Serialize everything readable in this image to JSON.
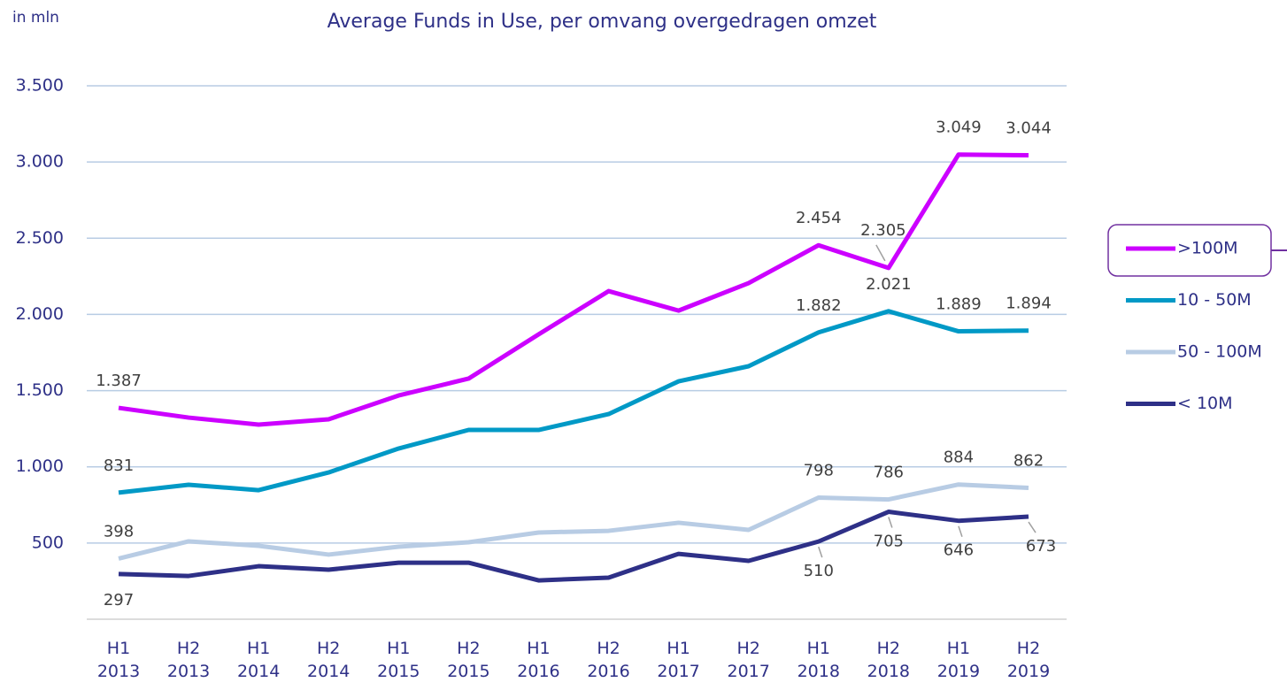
{
  "chart_data": {
    "type": "line",
    "title": "Average Funds in Use, per omvang overgedragen omzet",
    "y_label": "in mln",
    "categories": [
      "H1 2013",
      "H2 2013",
      "H1 2014",
      "H2 2014",
      "H1 2015",
      "H2 2015",
      "H1 2016",
      "H2 2016",
      "H1 2017",
      "H2 2017",
      "H1 2018",
      "H2 2018",
      "H1 2019",
      "H2 2019"
    ],
    "ylim": [
      0,
      3500
    ],
    "yticks": [
      500,
      {
        "value": 1000,
        "label": "1.000"
      },
      {
        "value": 1500,
        "label": "1.500"
      },
      {
        "value": 2000,
        "label": "2.000"
      },
      {
        "value": 2500,
        "label": "2.500"
      },
      {
        "value": 3000,
        "label": "3.000"
      },
      {
        "value": 3500,
        "label": "3.500"
      }
    ],
    "grid": true,
    "legend": "right",
    "series": [
      {
        "name": ">100M",
        "color": "#cc00ff",
        "values": [
          1387,
          1323,
          1277,
          1312,
          1468,
          1579,
          1869,
          2153,
          2025,
          2205,
          2454,
          2305,
          3049,
          3044
        ],
        "value_labels": [
          "1.387",
          null,
          null,
          null,
          null,
          null,
          null,
          null,
          null,
          null,
          "2.454",
          "2.305",
          "3.049",
          "3.044"
        ]
      },
      {
        "name": "10 - 50M",
        "color": "#0099c6",
        "values": [
          831,
          882,
          847,
          963,
          1120,
          1242,
          1242,
          1346,
          1561,
          1660,
          1882,
          2021,
          1889,
          1894
        ],
        "value_labels": [
          "831",
          null,
          null,
          null,
          null,
          null,
          null,
          null,
          null,
          null,
          "1.882",
          "2.021",
          "1.889",
          "1.894"
        ]
      },
      {
        "name": "50 - 100M",
        "color": "#b8cce4",
        "values": [
          398,
          511,
          482,
          424,
          476,
          505,
          569,
          580,
          633,
          586,
          798,
          786,
          884,
          862
        ],
        "value_labels": [
          "398",
          null,
          null,
          null,
          null,
          null,
          null,
          null,
          null,
          null,
          "798",
          "786",
          "884",
          "862"
        ]
      },
      {
        "name": "< 10M",
        "color": "#2e3087",
        "values": [
          297,
          284,
          348,
          325,
          371,
          371,
          255,
          273,
          429,
          383,
          510,
          705,
          646,
          673
        ],
        "value_labels": [
          "297",
          null,
          null,
          null,
          null,
          null,
          null,
          null,
          null,
          null,
          "510",
          "705",
          "646",
          "673"
        ]
      }
    ]
  }
}
